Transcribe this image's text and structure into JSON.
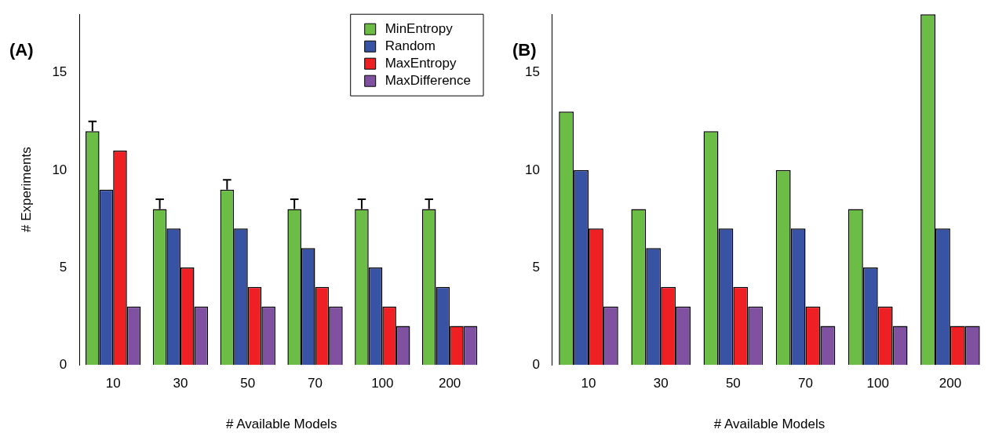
{
  "chart_data": [
    {
      "type": "bar",
      "title": "(A)",
      "xlabel": "# Available Models",
      "ylabel": "# Experiments",
      "categories": [
        "10",
        "30",
        "50",
        "70",
        "100",
        "200"
      ],
      "series": [
        {
          "name": "MinEntropy",
          "color": "#6cbd45",
          "values": [
            12,
            8,
            9,
            8,
            8,
            8
          ],
          "errors": [
            [
              12,
              12.5
            ],
            [
              8,
              8.5
            ],
            [
              9,
              9.5
            ],
            [
              8,
              8.5
            ],
            [
              8,
              8.5
            ],
            [
              8,
              8.5
            ]
          ]
        },
        {
          "name": "Random",
          "color": "#3953a4",
          "values": [
            9,
            7,
            7,
            6,
            5,
            4
          ]
        },
        {
          "name": "MaxEntropy",
          "color": "#ee2024",
          "values": [
            11,
            5,
            4,
            4,
            3,
            2
          ]
        },
        {
          "name": "MaxDifference",
          "color": "#8051a0",
          "values": [
            3,
            3,
            3,
            3,
            2,
            2
          ]
        }
      ],
      "ylim": [
        0,
        18
      ],
      "yticks": [
        0,
        5,
        10,
        15
      ],
      "grid": false,
      "legend": "top right"
    },
    {
      "type": "bar",
      "title": "(B)",
      "xlabel": "# Available Models",
      "categories": [
        "10",
        "30",
        "50",
        "70",
        "100",
        "200"
      ],
      "series": [
        {
          "color": "#6cbd45",
          "values": [
            13,
            8,
            12,
            10,
            8,
            18
          ]
        },
        {
          "color": "#3953a4",
          "values": [
            10,
            6,
            7,
            7,
            5,
            7
          ]
        },
        {
          "color": "#ee2024",
          "values": [
            7,
            4,
            4,
            3,
            3,
            2
          ]
        },
        {
          "color": "#8051a0",
          "values": [
            3,
            3,
            3,
            2,
            2,
            2
          ]
        }
      ],
      "ylim": [
        0,
        18
      ],
      "yticks": [
        0,
        5,
        10,
        15
      ],
      "grid": false
    }
  ]
}
